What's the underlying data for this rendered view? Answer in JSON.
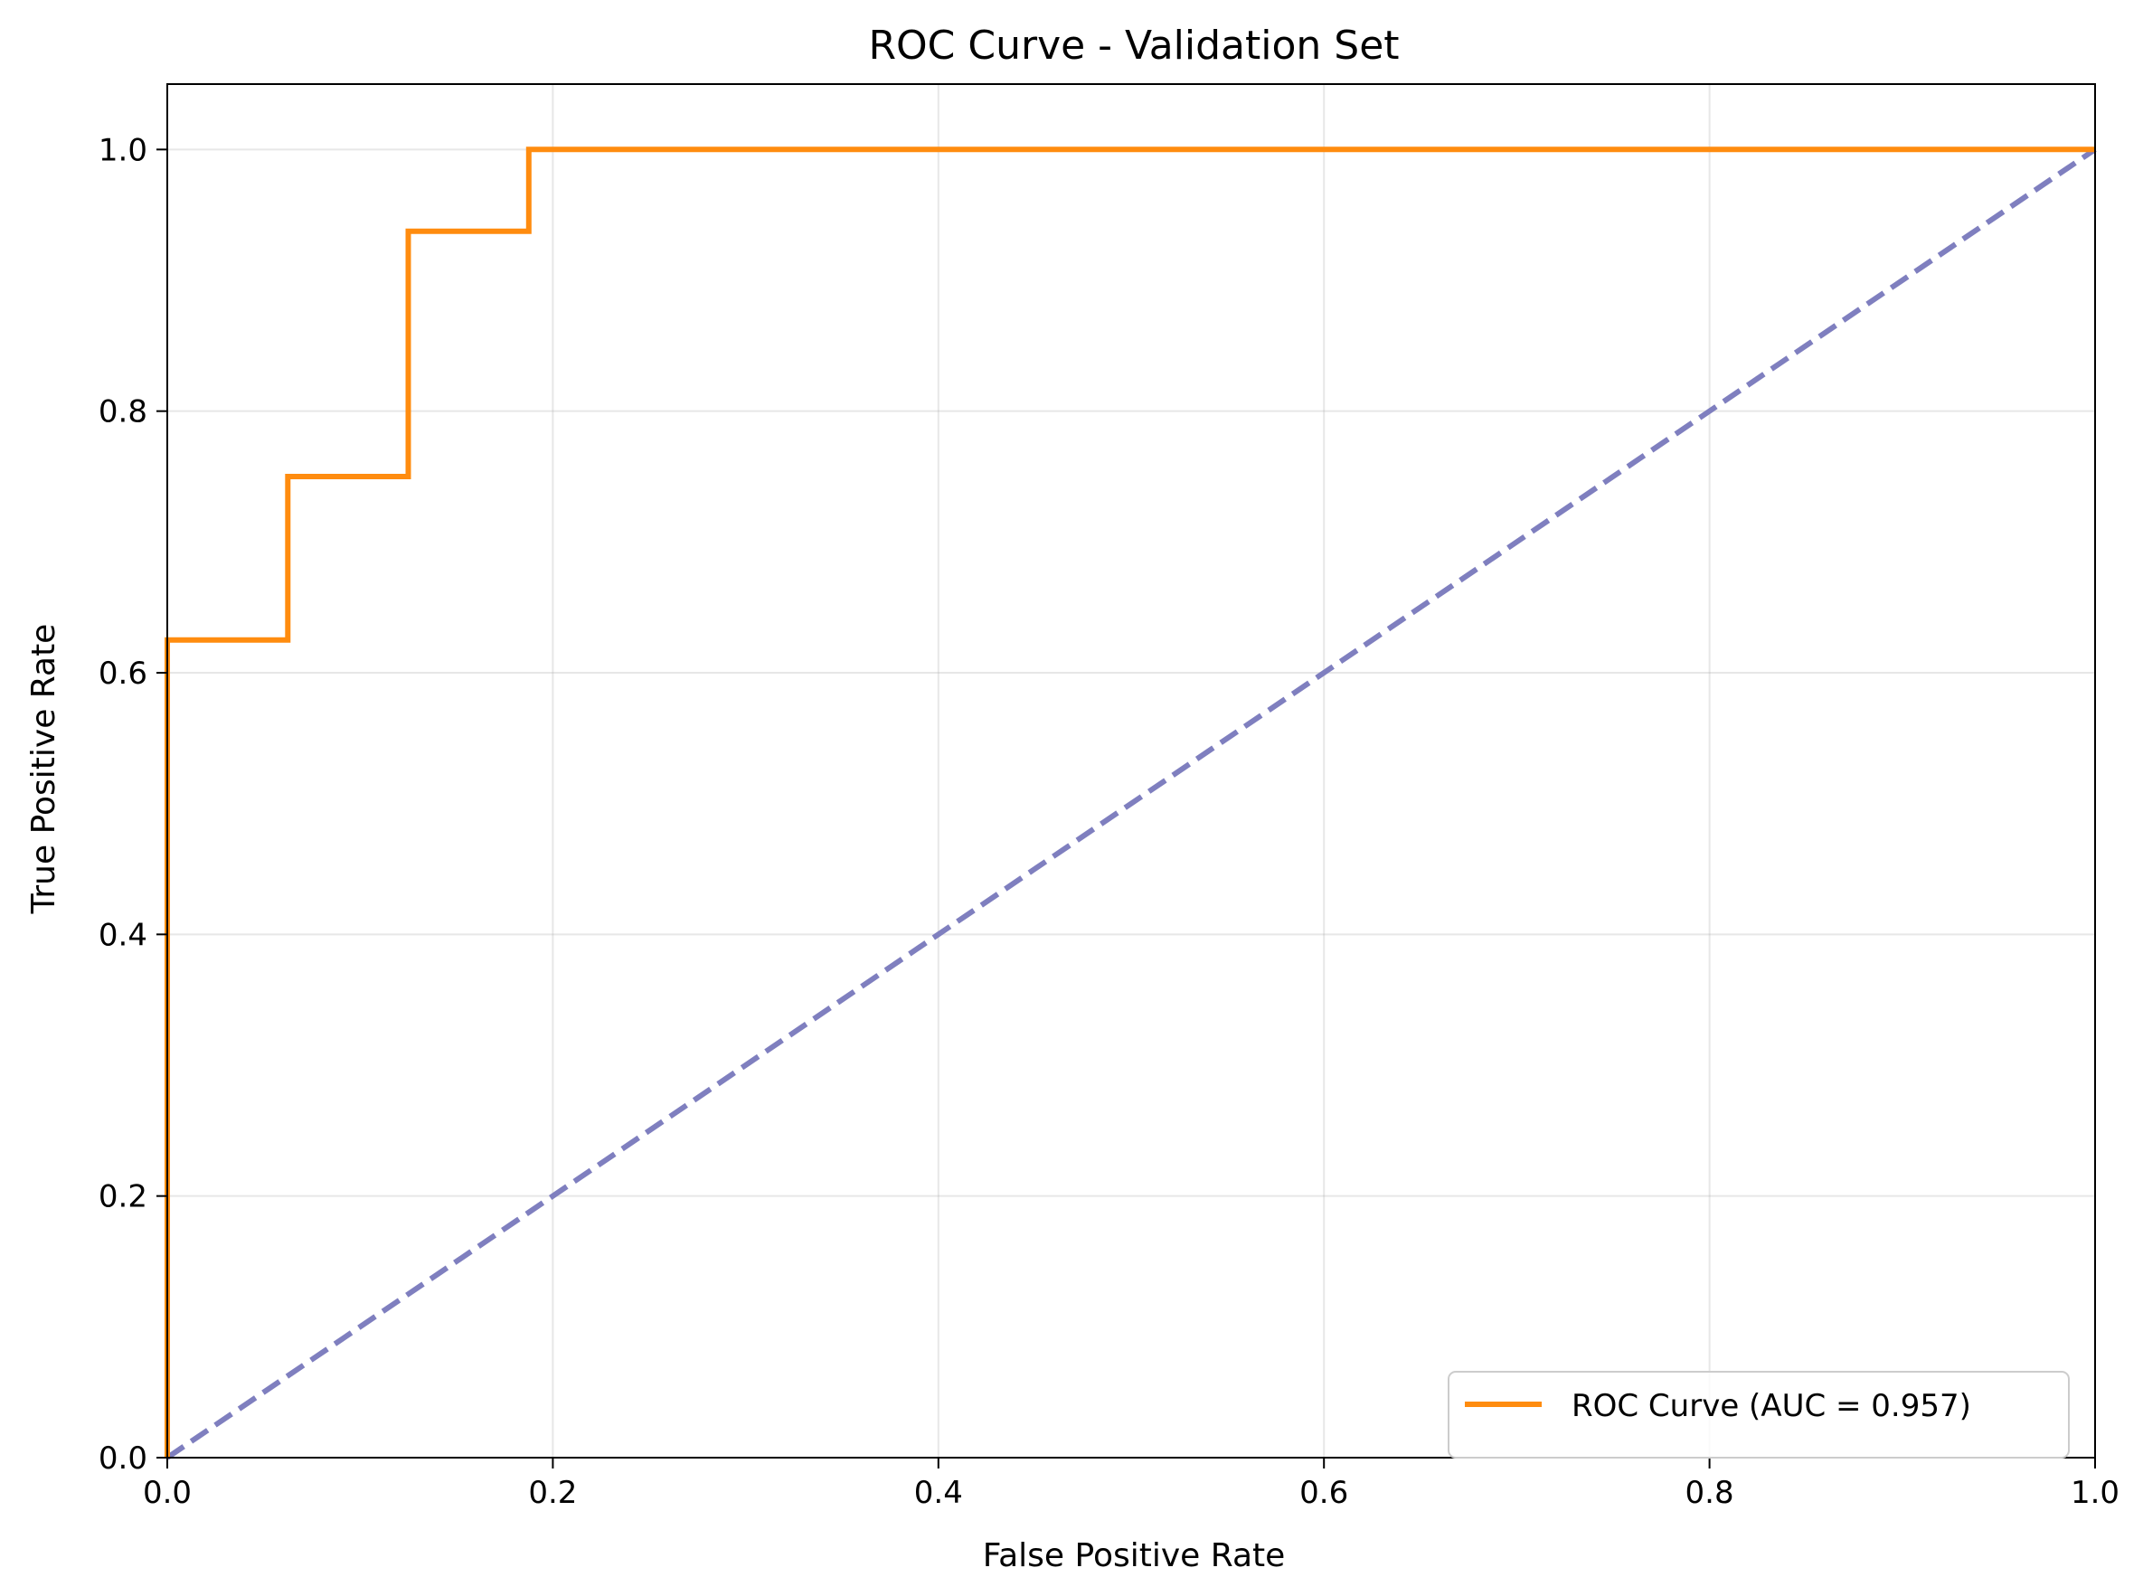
{
  "chart_data": {
    "type": "line",
    "title": "ROC Curve - Validation Set",
    "xlabel": "False Positive Rate",
    "ylabel": "True Positive Rate",
    "xlim": [
      0.0,
      1.0
    ],
    "ylim": [
      0.0,
      1.05
    ],
    "x_ticks": [
      0.0,
      0.2,
      0.4,
      0.6,
      0.8,
      1.0
    ],
    "y_ticks": [
      0.0,
      0.2,
      0.4,
      0.6,
      0.8,
      1.0
    ],
    "x_tick_labels": [
      "0.0",
      "0.2",
      "0.4",
      "0.6",
      "0.8",
      "1.0"
    ],
    "y_tick_labels": [
      "0.0",
      "0.2",
      "0.4",
      "0.6",
      "0.8",
      "1.0"
    ],
    "grid": true,
    "legend_position": "lower-right",
    "series": [
      {
        "name": "ROC Curve (AUC = 0.957)",
        "color": "#ff8c0f",
        "style": "solid",
        "x": [
          0.0,
          0.0,
          0.0625,
          0.0625,
          0.125,
          0.125,
          0.1875,
          0.1875,
          1.0
        ],
        "y": [
          0.0,
          0.625,
          0.625,
          0.75,
          0.75,
          0.9375,
          0.9375,
          1.0,
          1.0
        ]
      },
      {
        "name": "",
        "color": "#7f7fbf",
        "style": "dashed",
        "x": [
          0.0,
          1.0
        ],
        "y": [
          0.0,
          1.0
        ]
      }
    ]
  }
}
